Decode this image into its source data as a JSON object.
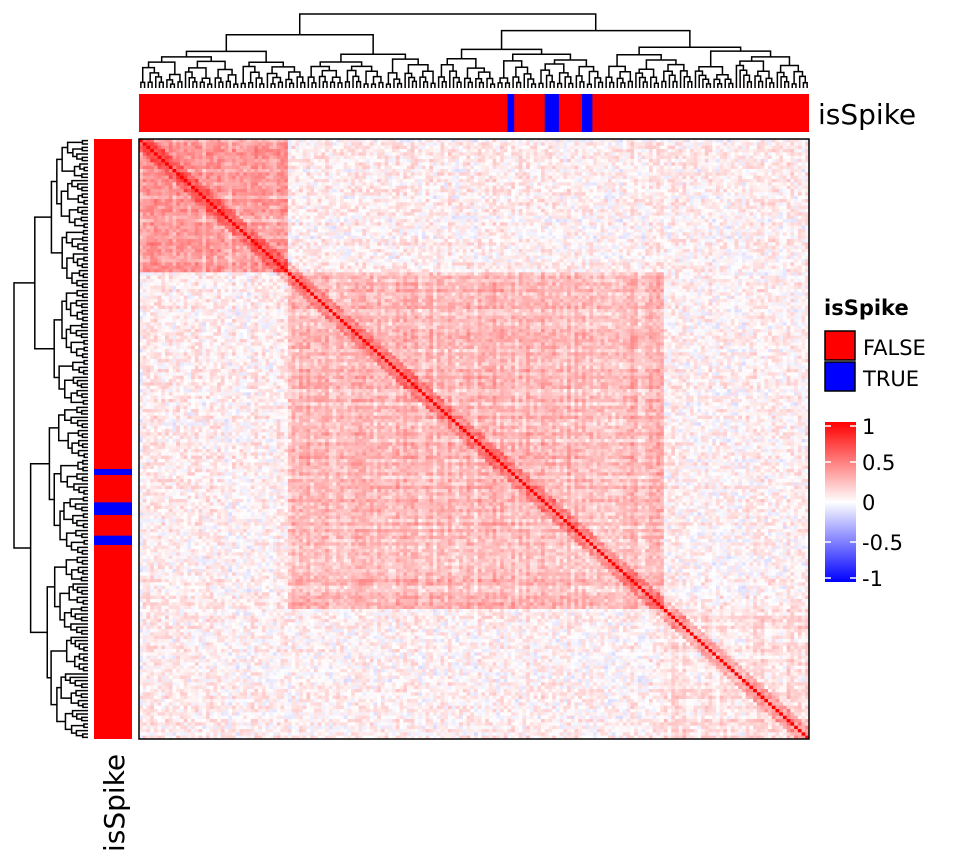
{
  "chart_data": {
    "type": "heatmap",
    "subtype": "clustered correlation heatmap",
    "matrix_size": 180,
    "symmetric": true,
    "diagonal_value": 1,
    "blocks": [
      {
        "start_fraction": 0.0,
        "end_fraction": 0.22,
        "mean_correlation": 0.35
      },
      {
        "start_fraction": 0.22,
        "end_fraction": 0.78,
        "mean_correlation": 0.25
      },
      {
        "start_fraction": 0.78,
        "end_fraction": 1.0,
        "mean_correlation": 0.12
      }
    ],
    "dendrograms": {
      "top": true,
      "left": true
    },
    "annotations": {
      "top": {
        "label": "isSpike",
        "true_positions_fraction": [
          0.548,
          0.605,
          0.61,
          0.615,
          0.66,
          0.665
        ]
      },
      "left": {
        "label": "isSpike",
        "true_positions_fraction": [
          0.548,
          0.605,
          0.61,
          0.615,
          0.66,
          0.665
        ]
      }
    },
    "legend": {
      "title": "isSpike",
      "entries": [
        {
          "label": "FALSE",
          "color": "#ff0000"
        },
        {
          "label": "TRUE",
          "color": "#0000ff"
        }
      ]
    },
    "colorbar": {
      "ticks": [
        "1",
        "0.5",
        "0",
        "-0.5",
        "-1"
      ],
      "tick_values": [
        1,
        0.5,
        0,
        -0.5,
        -1
      ],
      "colors": {
        "high": "#ff0000",
        "mid": "#ffffff",
        "low": "#0000ff"
      }
    },
    "legend_placement": "right",
    "grid": false
  }
}
